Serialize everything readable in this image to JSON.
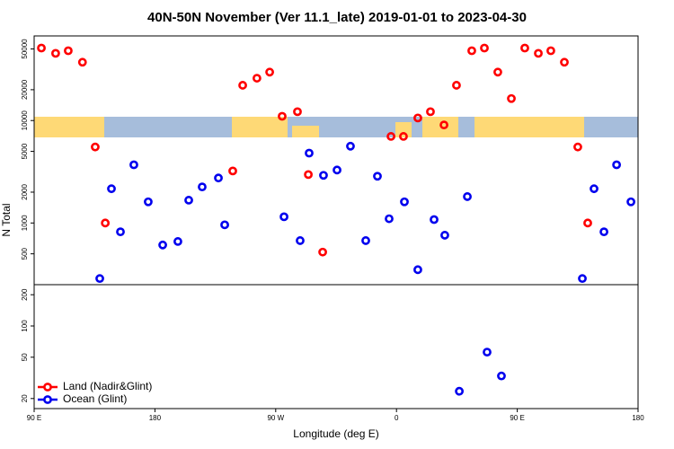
{
  "chart_data": [
    {
      "type": "scatter",
      "title": "40N-50N November (Ver 11.1_late)   2019-01-01 to 2023-04-30",
      "ylabel": "N Total",
      "log_y": true,
      "legend": "lower left",
      "xlim": [
        90,
        540
      ],
      "ylim": [
        250,
        67000
      ],
      "yticks": [
        500,
        1000,
        2000,
        5000,
        10000,
        20000,
        50000
      ],
      "series": [
        {
          "name": "Land (Nadir&Glint)",
          "color": "#ff0000",
          "x": [
            95.4,
            106,
            115.4,
            126,
            135.5,
            143,
            238,
            245.4,
            256,
            265.5,
            274.8,
            286.2,
            294.3,
            305,
            355.9,
            365.2,
            375.9,
            385.3,
            395.4,
            404.7,
            416.1,
            425.5,
            435.5,
            445.6,
            455.6,
            465.7,
            475,
            485.1,
            495.1,
            502.5
          ],
          "values": [
            51000,
            45300,
            48000,
            37100,
            5520,
            1000,
            3220,
            22100,
            25900,
            29700,
            11000,
            12200,
            2970,
            520,
            7000,
            7000,
            10600,
            12200,
            9060,
            22100,
            48000,
            51000,
            29700,
            16400,
            51000,
            45300,
            48000,
            37100,
            5520,
            1000
          ]
        },
        {
          "name": "Ocean (Glint)",
          "color": "#0000ee",
          "x": [
            138.9,
            147.6,
            154.3,
            164.3,
            175,
            185.8,
            197.1,
            205.2,
            215.2,
            227.3,
            232,
            276.2,
            288.2,
            294.9,
            305.6,
            315.7,
            325.7,
            337.1,
            345.8,
            354.5,
            365.9,
            375.9,
            388,
            396,
            412.8,
            498.5,
            507.2,
            514.6,
            524,
            534.7
          ],
          "values": [
            287,
            2160,
            820,
            3700,
            1610,
            610,
            660,
            1670,
            2250,
            2750,
            960,
            1150,
            673,
            4810,
            2920,
            3290,
            5620,
            673,
            2860,
            1100,
            1610,
            350,
            1080,
            760,
            1810,
            287,
            2160,
            820,
            3700,
            1610
          ]
        }
      ]
    },
    {
      "type": "scatter",
      "xlabel": "Longitude (deg E)",
      "log_y": true,
      "xlim": [
        90,
        540
      ],
      "ylim": [
        16,
        250
      ],
      "xticks": [
        {
          "value": 90,
          "label": "90 E"
        },
        180,
        {
          "value": 270,
          "label": "90 W"
        },
        {
          "value": 360,
          "label": "0"
        },
        {
          "value": 450,
          "label": "90 E"
        },
        {
          "value": 540,
          "label": "180"
        }
      ],
      "yticks": [
        20,
        50,
        100,
        200
      ],
      "series": [
        {
          "color": "#0000ee",
          "x": [
            406.8,
            427.5,
            438.2
          ],
          "values": [
            23.5,
            56,
            33
          ]
        }
      ]
    }
  ]
}
